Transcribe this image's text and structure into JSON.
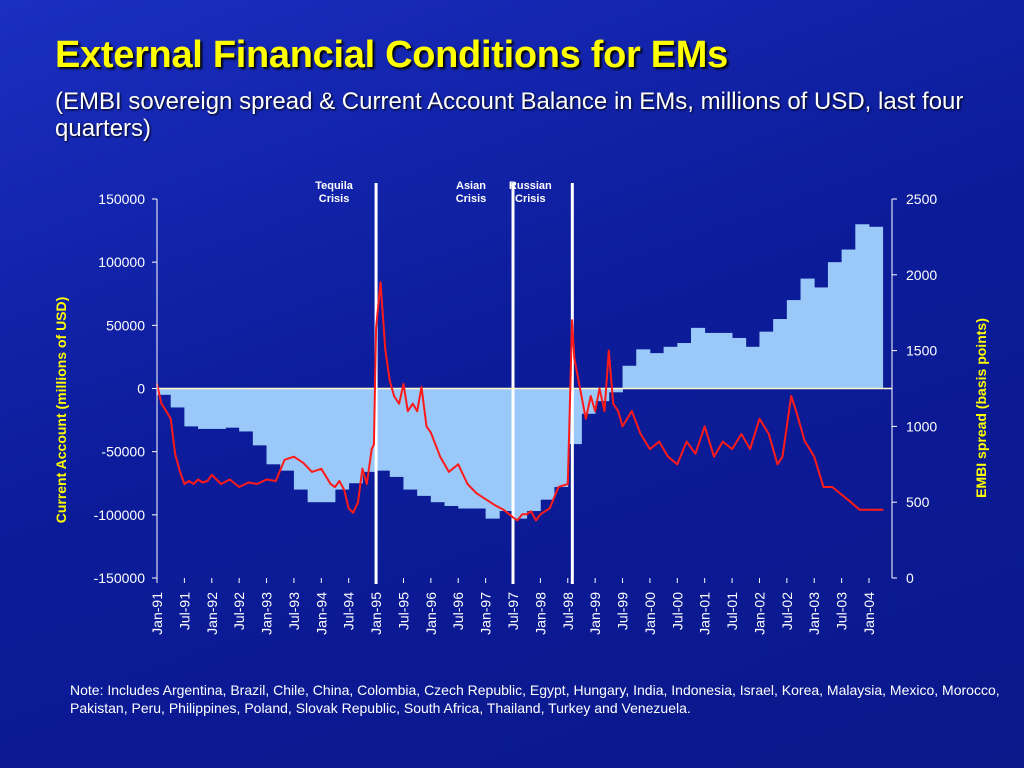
{
  "slide": {
    "title": "External Financial Conditions for EMs",
    "subtitle": "(EMBI sovereign spread & Current Account Balance in EMs, millions of USD, last four quarters)",
    "note": "Note: Includes Argentina, Brazil, Chile, China, Colombia, Czech Republic, Egypt, Hungary, India, Indonesia, Israel, Korea, Malaysia, Mexico, Morocco, Pakistan, Peru, Philippines, Poland, Slovak Republic, South Africa, Thailand, Turkey and Venezuela."
  },
  "colors": {
    "background": "#0c1c9a",
    "title": "#ffff00",
    "bars": "#9ac8f8",
    "spread_line": "#ff1a1a",
    "crisis_lines": "#ffffff",
    "axis_lines": "#ffffff",
    "zero_line": "#ffffcc"
  },
  "chart_data": {
    "type": "bar+line",
    "xlabel": "",
    "ylabel_left": "Current Account (millions  of USD)",
    "ylabel_right": "EMBI spread (basis points)",
    "ylim_left": [
      -150000,
      150000
    ],
    "yticks_left": [
      "150000",
      "100000",
      "50000",
      "0",
      "-50000",
      "-100000",
      "-150000"
    ],
    "ylim_right": [
      0,
      2500
    ],
    "yticks_right": [
      "2500",
      "2000",
      "1500",
      "1000",
      "500",
      "0"
    ],
    "grid": false,
    "x_tick_labels": [
      "Jan-91",
      "Jul-91",
      "Jan-92",
      "Jul-92",
      "Jan-93",
      "Jul-93",
      "Jan-94",
      "Jul-94",
      "Jan-95",
      "Jul-95",
      "Jan-96",
      "Jul-96",
      "Jan-97",
      "Jul-97",
      "Jan-98",
      "Jul-98",
      "Jan-99",
      "Jul-99",
      "Jan-00",
      "Jul-00",
      "Jan-01",
      "Jul-01",
      "Jan-02",
      "Jul-02",
      "Jan-03",
      "Jul-03",
      "Jan-04"
    ],
    "crisis_markers": [
      {
        "line1": "Tequila",
        "line2": "Crisis",
        "date": "Jan-95"
      },
      {
        "line1": "Asian",
        "line2": "Crisis",
        "date": "Jul-97"
      },
      {
        "line1": "Russian",
        "line2": "Crisis",
        "date": "Aug-98"
      }
    ],
    "series": [
      {
        "name": "Current Account (millions of USD)",
        "axis": "left",
        "kind": "bar",
        "x": [
          "1991Q1",
          "1991Q2",
          "1991Q3",
          "1991Q4",
          "1992Q1",
          "1992Q2",
          "1992Q3",
          "1992Q4",
          "1993Q1",
          "1993Q2",
          "1993Q3",
          "1993Q4",
          "1994Q1",
          "1994Q2",
          "1994Q3",
          "1994Q4",
          "1995Q1",
          "1995Q2",
          "1995Q3",
          "1995Q4",
          "1996Q1",
          "1996Q2",
          "1996Q3",
          "1996Q4",
          "1997Q1",
          "1997Q2",
          "1997Q3",
          "1997Q4",
          "1998Q1",
          "1998Q2",
          "1998Q3",
          "1998Q4",
          "1999Q1",
          "1999Q2",
          "1999Q3",
          "1999Q4",
          "2000Q1",
          "2000Q2",
          "2000Q3",
          "2000Q4",
          "2001Q1",
          "2001Q2",
          "2001Q3",
          "2001Q4",
          "2002Q1",
          "2002Q2",
          "2002Q3",
          "2002Q4",
          "2003Q1",
          "2003Q2",
          "2003Q3",
          "2003Q4",
          "2004Q1"
        ],
        "values": [
          -5000,
          -15000,
          -30000,
          -32000,
          -32000,
          -31000,
          -34000,
          -45000,
          -60000,
          -65000,
          -80000,
          -90000,
          -90000,
          -80000,
          -75000,
          -66000,
          -65000,
          -70000,
          -80000,
          -85000,
          -90000,
          -93000,
          -95000,
          -95000,
          -103000,
          -97000,
          -103000,
          -97000,
          -88000,
          -78000,
          -44000,
          -20000,
          -10000,
          -3000,
          18000,
          31000,
          28000,
          33000,
          36000,
          48000,
          44000,
          44000,
          40000,
          33000,
          45000,
          55000,
          70000,
          87000,
          80000,
          100000,
          110000,
          130000,
          128000
        ]
      },
      {
        "name": "EMBI spread (basis points)",
        "axis": "right",
        "kind": "line",
        "x": [
          "1991.00",
          "1991.08",
          "1991.17",
          "1991.25",
          "1991.33",
          "1991.42",
          "1991.50",
          "1991.58",
          "1991.67",
          "1991.75",
          "1991.83",
          "1991.92",
          "1992.00",
          "1992.17",
          "1992.33",
          "1992.50",
          "1992.67",
          "1992.83",
          "1993.00",
          "1993.17",
          "1993.33",
          "1993.50",
          "1993.67",
          "1993.83",
          "1994.00",
          "1994.17",
          "1994.25",
          "1994.33",
          "1994.42",
          "1994.50",
          "1994.58",
          "1994.67",
          "1994.75",
          "1994.83",
          "1994.92",
          "1994.96",
          "1995.00",
          "1995.08",
          "1995.17",
          "1995.25",
          "1995.33",
          "1995.42",
          "1995.50",
          "1995.58",
          "1995.67",
          "1995.75",
          "1995.83",
          "1995.92",
          "1996.00",
          "1996.17",
          "1996.33",
          "1996.50",
          "1996.67",
          "1996.83",
          "1997.00",
          "1997.17",
          "1997.33",
          "1997.50",
          "1997.58",
          "1997.67",
          "1997.75",
          "1997.83",
          "1997.92",
          "1998.00",
          "1998.17",
          "1998.33",
          "1998.50",
          "1998.58",
          "1998.62",
          "1998.67",
          "1998.75",
          "1998.83",
          "1998.92",
          "1999.00",
          "1999.08",
          "1999.17",
          "1999.25",
          "1999.33",
          "1999.42",
          "1999.50",
          "1999.67",
          "1999.83",
          "2000.00",
          "2000.17",
          "2000.33",
          "2000.50",
          "2000.67",
          "2000.83",
          "2001.00",
          "2001.17",
          "2001.33",
          "2001.50",
          "2001.67",
          "2001.83",
          "2002.00",
          "2002.17",
          "2002.33",
          "2002.42",
          "2002.50",
          "2002.58",
          "2002.67",
          "2002.75",
          "2002.83",
          "2002.92",
          "2003.00",
          "2003.17",
          "2003.33",
          "2003.50",
          "2003.67",
          "2003.83",
          "2004.00",
          "2004.17",
          "2004.25"
        ],
        "values": [
          1280,
          1150,
          1100,
          1050,
          820,
          700,
          620,
          640,
          620,
          650,
          630,
          640,
          680,
          620,
          650,
          600,
          630,
          620,
          650,
          640,
          780,
          800,
          760,
          700,
          720,
          620,
          600,
          640,
          580,
          460,
          430,
          500,
          720,
          620,
          850,
          880,
          1650,
          1950,
          1500,
          1300,
          1200,
          1150,
          1280,
          1100,
          1150,
          1100,
          1260,
          1000,
          960,
          800,
          700,
          750,
          620,
          560,
          520,
          480,
          450,
          400,
          380,
          420,
          420,
          440,
          380,
          420,
          460,
          600,
          620,
          1700,
          1450,
          1350,
          1200,
          1050,
          1200,
          1100,
          1250,
          1100,
          1500,
          1150,
          1100,
          1000,
          1100,
          950,
          850,
          900,
          800,
          750,
          900,
          820,
          1000,
          800,
          900,
          850,
          950,
          850,
          1050,
          950,
          750,
          800,
          1000,
          1200,
          1100,
          1000,
          900,
          850,
          800,
          600,
          600,
          550,
          500,
          450,
          450,
          450,
          450
        ]
      }
    ]
  }
}
